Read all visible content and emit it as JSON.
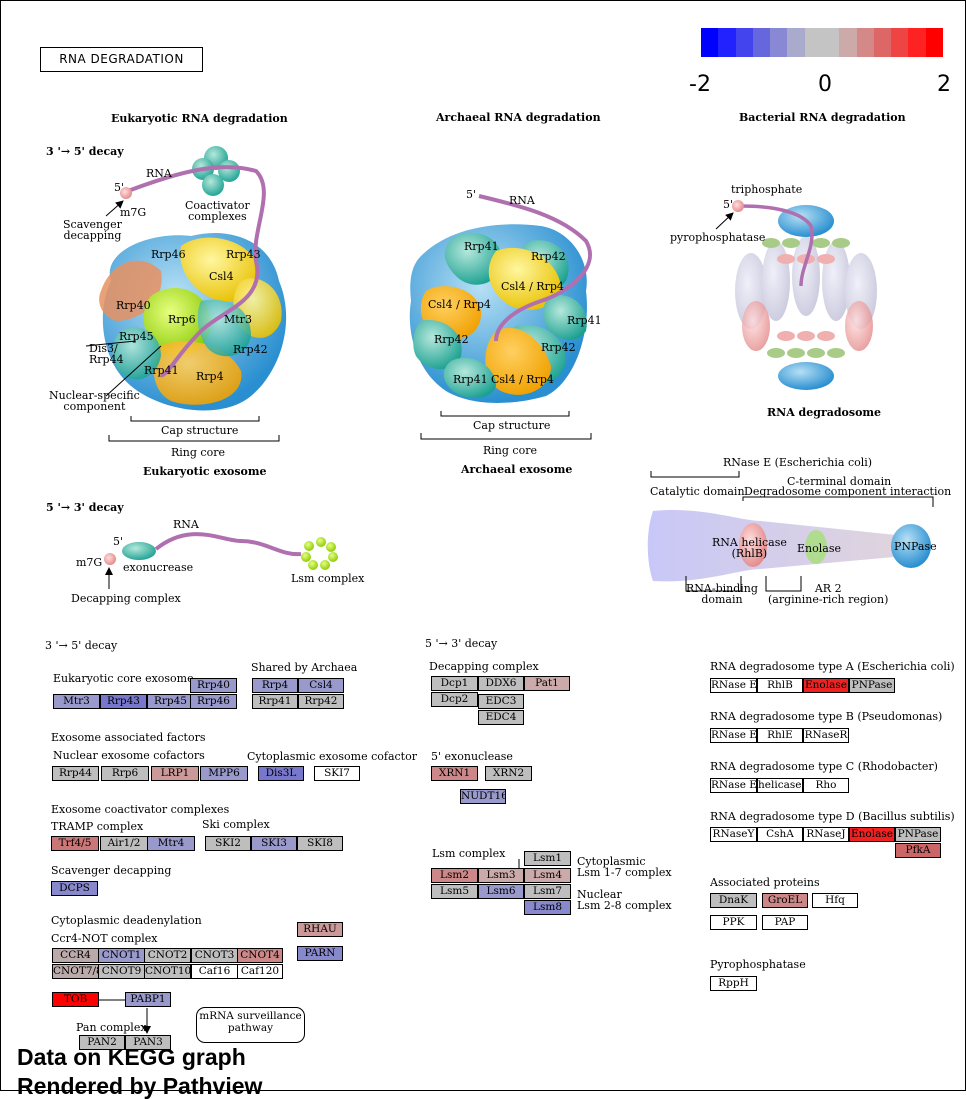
{
  "title": "RNA DEGRADATION",
  "legend": {
    "min": "-2",
    "mid": "0",
    "max": "2",
    "colors": [
      "#0000ff",
      "#2222ff",
      "#4444ee",
      "#6666dd",
      "#8888d4",
      "#aaaacc",
      "#c4c4c4",
      "#c4c4c4",
      "#ccaaaa",
      "#d48888",
      "#dd6666",
      "#ee4444",
      "#ff2222",
      "#ff0000"
    ]
  },
  "headings": {
    "euk": "Eukaryotic RNA degradation",
    "arch": "Archaeal RNA degradation",
    "bact": "Bacterial RNA degradation",
    "decay35": "3 '→ 5' decay",
    "decay53": "5 '→ 3' decay",
    "euk_exosome": "Eukaryotic exosome",
    "arch_exosome": "Archaeal exosome",
    "rna_degradosome": "RNA degradosome"
  },
  "labels": {
    "rna": "RNA",
    "five": "5'",
    "m7g": "m7G",
    "m7g2": "m7G",
    "scavenger": "Scavenger\ndecapping",
    "coactivator": "Coactivator\ncomplexes",
    "dis3": "Dis3/\nRrp44",
    "nuclear_specific": "Nuclear-specific\ncomponent",
    "cap_structure": "Cap structure",
    "ring_core": "Ring core",
    "exonuclease": "exonucrease",
    "lsm_complex_ill": "Lsm complex",
    "decapping_complex_ill": "Decapping complex",
    "triphosphate": "triphosphate",
    "pyrophosphatase": "pyrophosphatase",
    "rnase_e": "RNase E (Escherichia coli)",
    "c_terminal": "C-terminal domain",
    "degradosome_interaction": "Degradosome component interaction",
    "catalytic": "Catalytic domain",
    "rna_helicase": "RNA helicase\n(RhlB)",
    "enolase": "Enolase",
    "pnpase": "PNPase",
    "rna_binding": "RNA-binding\ndomain",
    "ar2": "AR 2\n(arginine-rich region)"
  },
  "euk_sub": [
    "Rrp46",
    "Rrp43",
    "Csl4",
    "Rrp40",
    "Rrp6",
    "Mtr3",
    "Rrp45",
    "Rrp42",
    "Rrp41",
    "Rrp4"
  ],
  "arch_sub": [
    "Rrp41",
    "Rrp42",
    "Csl4 / Rrp4",
    "Csl4 / Rrp4",
    "Rrp41",
    "Rrp42",
    "Rrp42",
    "Rrp41",
    "Csl4 / Rrp4"
  ],
  "sections": {
    "s35": "3 '→ 5' decay",
    "s53": "5 '→ 3' decay",
    "euk_core": "Eukaryotic core exosome",
    "shared": "Shared by Archaea",
    "exo_assoc": "Exosome associated factors",
    "nuc_cof": "Nuclear exosome cofactors",
    "cyto_cof": "Cytoplasmic exosome cofactor",
    "coact": "Exosome coactivator complexes",
    "tramp": "TRAMP complex",
    "ski": "Ski complex",
    "scav": "Scavenger decapping",
    "deadenyl": "Cytoplasmic deadenylation",
    "ccr4": "Ccr4-NOT complex",
    "pan": "Pan complex",
    "mrna": "mRNA surveillance\npathway",
    "decap": "Decapping complex",
    "exo5": "5' exonuclease",
    "lsm": "Lsm complex",
    "lsm17": "Cytoplasmic\nLsm 1-7 complex",
    "lsm28": "Nuclear\nLsm 2-8 complex",
    "typeA": "RNA degradosome type A (Escherichia coli)",
    "typeB": "RNA degradosome type B (Pseudomonas)",
    "typeC": "RNA degradosome type C (Rhodobacter)",
    "typeD": "RNA degradosome type D (Bacillus subtilis)",
    "assoc": "Associated proteins",
    "pyro": "Pyrophosphatase"
  },
  "genes": [
    {
      "id": "Rrp40",
      "label": "Rrp40",
      "color": "#9999cc"
    },
    {
      "id": "Mtr3",
      "label": "Mtr3",
      "color": "#9999cc"
    },
    {
      "id": "Rrp43",
      "label": "Rrp43",
      "color": "#7777cc"
    },
    {
      "id": "Rrp45",
      "label": "Rrp45",
      "color": "#9999cc"
    },
    {
      "id": "Rrp46",
      "label": "Rrp46",
      "color": "#9999cc"
    },
    {
      "id": "Rrp4",
      "label": "Rrp4",
      "color": "#9999cc"
    },
    {
      "id": "Csl4",
      "label": "Csl4",
      "color": "#9999cc"
    },
    {
      "id": "Rrp41",
      "label": "Rrp41",
      "color": "#bebebe"
    },
    {
      "id": "Rrp42",
      "label": "Rrp42",
      "color": "#bebebe"
    },
    {
      "id": "Rrp44",
      "label": "Rrp44",
      "color": "#bebebe"
    },
    {
      "id": "Rrp6",
      "label": "Rrp6",
      "color": "#bebebe"
    },
    {
      "id": "LRP1",
      "label": "LRP1",
      "color": "#cc9999"
    },
    {
      "id": "MPP6",
      "label": "MPP6",
      "color": "#9999cc"
    },
    {
      "id": "Dis3L",
      "label": "Dis3L",
      "color": "#7777cc"
    },
    {
      "id": "SKI7",
      "label": "SKI7",
      "color": "#ffffff"
    },
    {
      "id": "Trf45",
      "label": "Trf4/5",
      "color": "#cc7777"
    },
    {
      "id": "Air12",
      "label": "Air1/2",
      "color": "#bebebe"
    },
    {
      "id": "Mtr4",
      "label": "Mtr4",
      "color": "#9999cc"
    },
    {
      "id": "SKI2",
      "label": "SKI2",
      "color": "#bebebe"
    },
    {
      "id": "SKI3",
      "label": "SKI3",
      "color": "#9999cc"
    },
    {
      "id": "SKI8",
      "label": "SKI8",
      "color": "#bebebe"
    },
    {
      "id": "DCPS",
      "label": "DCPS",
      "color": "#8888cc"
    },
    {
      "id": "RHAU",
      "label": "RHAU",
      "color": "#cc9999"
    },
    {
      "id": "PARN",
      "label": "PARN",
      "color": "#8888cc"
    },
    {
      "id": "CCR4",
      "label": "CCR4",
      "color": "#bbaaaa"
    },
    {
      "id": "CNOT1",
      "label": "CNOT1",
      "color": "#9999cc"
    },
    {
      "id": "CNOT2",
      "label": "CNOT2",
      "color": "#bebebe"
    },
    {
      "id": "CNOT3",
      "label": "CNOT3",
      "color": "#bebebe"
    },
    {
      "id": "CNOT4",
      "label": "CNOT4",
      "color": "#cc8888"
    },
    {
      "id": "CNOT78",
      "label": "CNOT7/8",
      "color": "#bbaaaa"
    },
    {
      "id": "CNOT9",
      "label": "CNOT9",
      "color": "#bebebe"
    },
    {
      "id": "CNOT10",
      "label": "CNOT10",
      "color": "#bebebe"
    },
    {
      "id": "Caf16",
      "label": "Caf16",
      "color": "#ffffff"
    },
    {
      "id": "Caf120",
      "label": "Caf120",
      "color": "#ffffff"
    },
    {
      "id": "TOB",
      "label": "TOB",
      "color": "#ff0000"
    },
    {
      "id": "PABP1",
      "label": "PABP1",
      "color": "#9999cc"
    },
    {
      "id": "PAN2",
      "label": "PAN2",
      "color": "#bebebe"
    },
    {
      "id": "PAN3",
      "label": "PAN3",
      "color": "#bebebe"
    },
    {
      "id": "Dcp1",
      "label": "Dcp1",
      "color": "#bebebe"
    },
    {
      "id": "DDX6",
      "label": "DDX6",
      "color": "#bebebe"
    },
    {
      "id": "Pat1",
      "label": "Pat1",
      "color": "#ccaaaa"
    },
    {
      "id": "Dcp2",
      "label": "Dcp2",
      "color": "#bebebe"
    },
    {
      "id": "EDC3",
      "label": "EDC3",
      "color": "#bebebe"
    },
    {
      "id": "EDC4",
      "label": "EDC4",
      "color": "#bebebe"
    },
    {
      "id": "XRN1",
      "label": "XRN1",
      "color": "#cc8888"
    },
    {
      "id": "XRN2",
      "label": "XRN2",
      "color": "#bebebe"
    },
    {
      "id": "NUDT16",
      "label": "NUDT16",
      "color": "#9999cc"
    },
    {
      "id": "Lsm1",
      "label": "Lsm1",
      "color": "#bebebe"
    },
    {
      "id": "Lsm2",
      "label": "Lsm2",
      "color": "#cc8888"
    },
    {
      "id": "Lsm3",
      "label": "Lsm3",
      "color": "#ccaaaa"
    },
    {
      "id": "Lsm4",
      "label": "Lsm4",
      "color": "#ccaaaa"
    },
    {
      "id": "Lsm5",
      "label": "Lsm5",
      "color": "#bebebe"
    },
    {
      "id": "Lsm6",
      "label": "Lsm6",
      "color": "#9999cc"
    },
    {
      "id": "Lsm7",
      "label": "Lsm7",
      "color": "#bebebe"
    },
    {
      "id": "Lsm8",
      "label": "Lsm8",
      "color": "#8888cc"
    },
    {
      "id": "RNaseE_A",
      "label": "RNase E",
      "color": "#ffffff"
    },
    {
      "id": "RhlB_A",
      "label": "RhlB",
      "color": "#ffffff"
    },
    {
      "id": "Enolase_A",
      "label": "Enolase",
      "color": "#ee2222"
    },
    {
      "id": "PNPase_A",
      "label": "PNPase",
      "color": "#bebebe"
    },
    {
      "id": "RNaseE_B",
      "label": "RNase E",
      "color": "#ffffff"
    },
    {
      "id": "RhlE_B",
      "label": "RhlE",
      "color": "#ffffff"
    },
    {
      "id": "RNaseR_B",
      "label": "RNaseR",
      "color": "#ffffff"
    },
    {
      "id": "RNaseE_C",
      "label": "RNase E",
      "color": "#ffffff"
    },
    {
      "id": "helicases_C",
      "label": "helicases",
      "color": "#ffffff"
    },
    {
      "id": "Rho_C",
      "label": "Rho",
      "color": "#ffffff"
    },
    {
      "id": "RNaseY_D",
      "label": "RNaseY",
      "color": "#ffffff"
    },
    {
      "id": "CshA_D",
      "label": "CshA",
      "color": "#ffffff"
    },
    {
      "id": "RNaseJ_D",
      "label": "RNaseJ",
      "color": "#ffffff"
    },
    {
      "id": "Enolase_D",
      "label": "Enolase",
      "color": "#ee2222"
    },
    {
      "id": "PNPase_D",
      "label": "PNPase",
      "color": "#bebebe"
    },
    {
      "id": "PfkA_D",
      "label": "PfkA",
      "color": "#cc6666"
    },
    {
      "id": "DnaK",
      "label": "DnaK",
      "color": "#bebebe"
    },
    {
      "id": "GroEL",
      "label": "GroEL",
      "color": "#cc8888"
    },
    {
      "id": "Hfq",
      "label": "Hfq",
      "color": "#ffffff"
    },
    {
      "id": "PPK",
      "label": "PPK",
      "color": "#ffffff"
    },
    {
      "id": "PAP",
      "label": "PAP",
      "color": "#ffffff"
    },
    {
      "id": "RppH",
      "label": "RppH",
      "color": "#ffffff"
    }
  ],
  "footer": {
    "line1": "Data on KEGG graph",
    "line2": "Rendered by Pathview"
  }
}
